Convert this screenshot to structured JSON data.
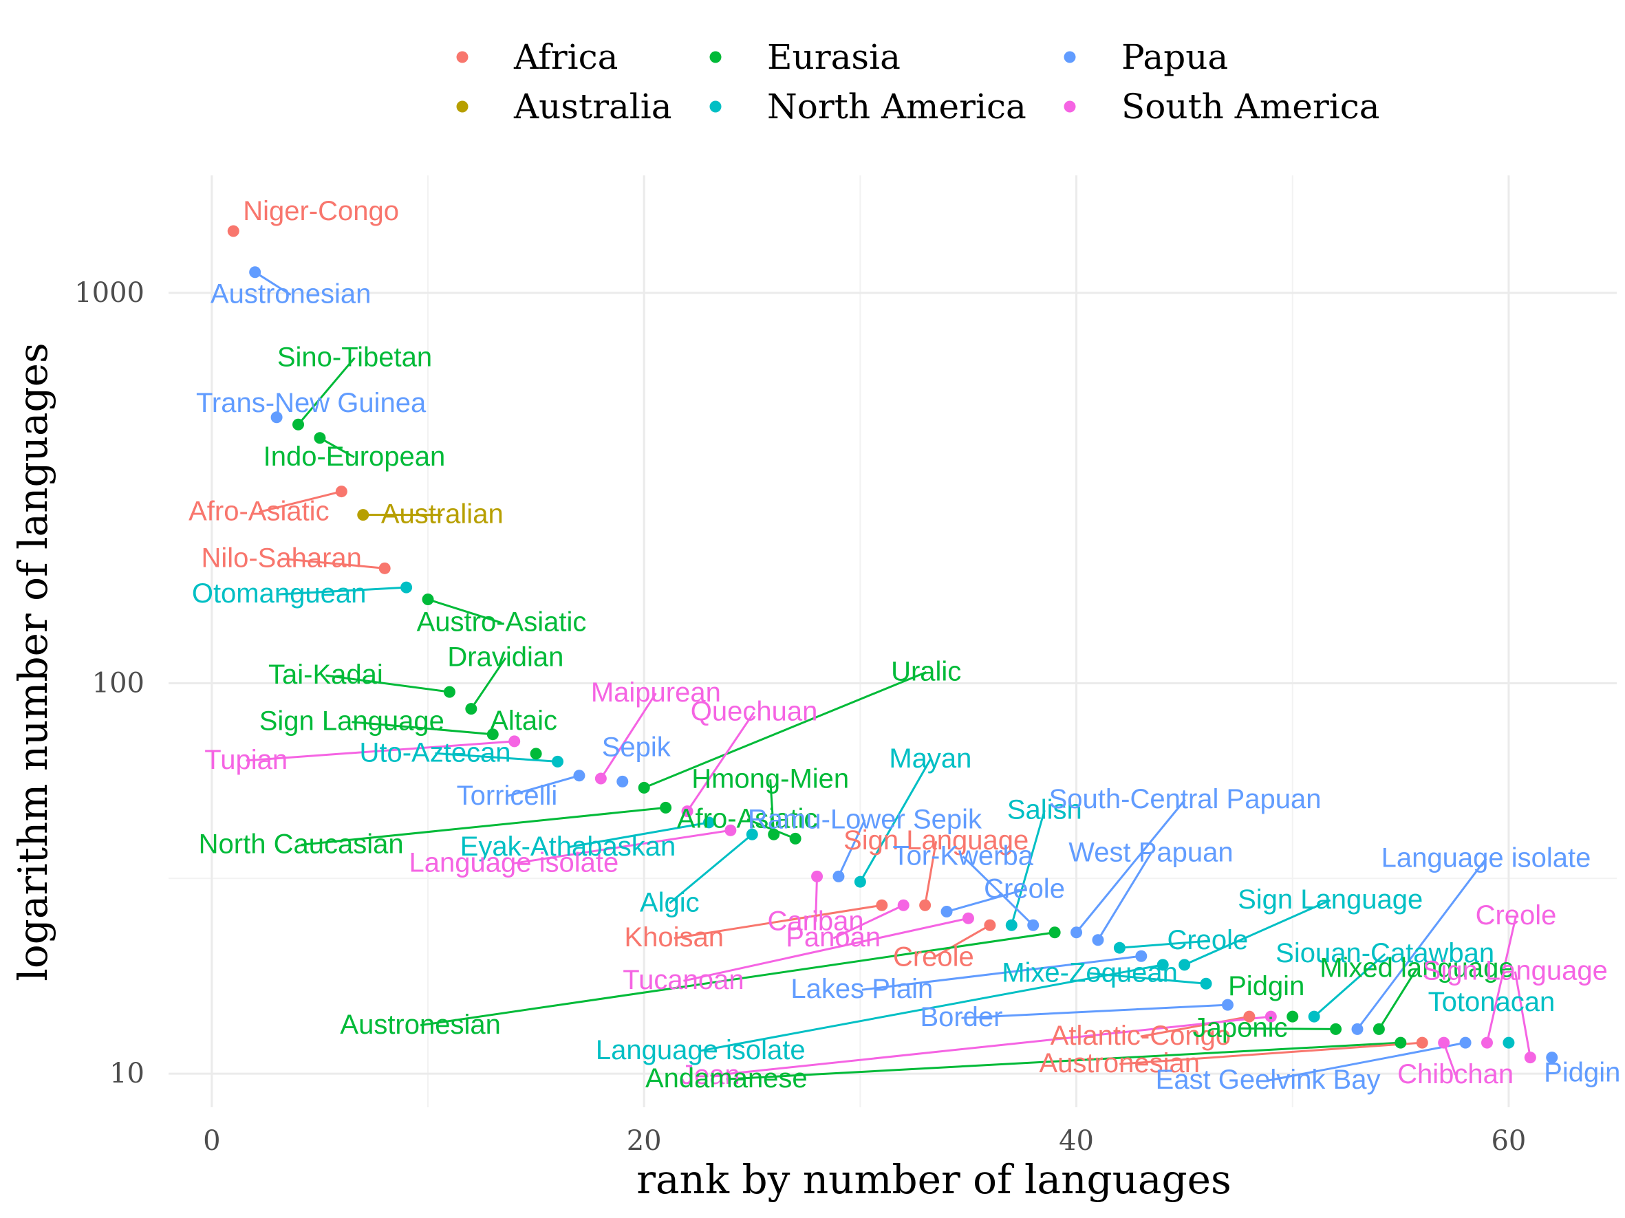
{
  "chart_data": {
    "type": "scatter",
    "title": "",
    "xlabel": "rank by number of languages",
    "ylabel": "logarithm number of languages",
    "x_scale": "linear",
    "y_scale": "log10",
    "xlim": [
      -2,
      65
    ],
    "ylim": [
      8.2,
      2000
    ],
    "x_ticks": [
      0,
      20,
      40,
      60
    ],
    "y_ticks": [
      10,
      100,
      1000
    ],
    "x_tick_labels": [
      "0",
      "20",
      "40",
      "60"
    ],
    "y_tick_labels": [
      "10",
      "100",
      "1000"
    ],
    "grid": true,
    "legend_position": "top",
    "legend": [
      {
        "name": "Africa",
        "color": "#F8766D"
      },
      {
        "name": "Australia",
        "color": "#B79F00"
      },
      {
        "name": "Eurasia",
        "color": "#00BA38"
      },
      {
        "name": "North America",
        "color": "#00BFC4"
      },
      {
        "name": "Papua",
        "color": "#619CFF"
      },
      {
        "name": "South America",
        "color": "#F564E3"
      }
    ],
    "points": [
      {
        "x": 1,
        "y": 1440,
        "region": "Africa",
        "label": "Niger-Congo"
      },
      {
        "x": 2,
        "y": 1130,
        "region": "Papua",
        "label": "Austronesian"
      },
      {
        "x": 3,
        "y": 480,
        "region": "Papua",
        "label": "Trans-New Guinea"
      },
      {
        "x": 4,
        "y": 460,
        "region": "Eurasia",
        "label": "Sino-Tibetan"
      },
      {
        "x": 5,
        "y": 425,
        "region": "Eurasia",
        "label": "Indo-European"
      },
      {
        "x": 6,
        "y": 310,
        "region": "Africa",
        "label": "Afro-Asiatic"
      },
      {
        "x": 7,
        "y": 270,
        "region": "Australia",
        "label": "Australian"
      },
      {
        "x": 8,
        "y": 197,
        "region": "Africa",
        "label": "Nilo-Saharan"
      },
      {
        "x": 9,
        "y": 176,
        "region": "North America",
        "label": "Otomanguean"
      },
      {
        "x": 10,
        "y": 164,
        "region": "Eurasia",
        "label": "Austro-Asiatic"
      },
      {
        "x": 11,
        "y": 95,
        "region": "Eurasia",
        "label": "Tai-Kadai"
      },
      {
        "x": 12,
        "y": 86,
        "region": "Eurasia",
        "label": "Dravidian"
      },
      {
        "x": 13,
        "y": 74,
        "region": "Eurasia",
        "label": "Sign Language"
      },
      {
        "x": 14,
        "y": 71,
        "region": "South America",
        "label": "Tupian"
      },
      {
        "x": 15,
        "y": 66,
        "region": "Eurasia",
        "label": "Altaic"
      },
      {
        "x": 16,
        "y": 63,
        "region": "North America",
        "label": "Uto-Aztecan"
      },
      {
        "x": 17,
        "y": 58,
        "region": "Papua",
        "label": "Torricelli"
      },
      {
        "x": 18,
        "y": 57,
        "region": "South America",
        "label": "Maipurean"
      },
      {
        "x": 19,
        "y": 56,
        "region": "Papua",
        "label": "Sepik"
      },
      {
        "x": 20,
        "y": 54,
        "region": "Eurasia",
        "label": "Uralic"
      },
      {
        "x": 21,
        "y": 48,
        "region": "Eurasia",
        "label": "North Caucasian"
      },
      {
        "x": 22,
        "y": 47,
        "region": "South America",
        "label": "Quechuan"
      },
      {
        "x": 23,
        "y": 44,
        "region": "North America",
        "label": "Eyak-Athabaskan"
      },
      {
        "x": 24,
        "y": 42,
        "region": "South America",
        "label": "Language isolate"
      },
      {
        "x": 25,
        "y": 41,
        "region": "North America",
        "label": "Algic"
      },
      {
        "x": 26,
        "y": 41,
        "region": "Eurasia",
        "label": "Hmong-Mien"
      },
      {
        "x": 27,
        "y": 40,
        "region": "Eurasia",
        "label": "Afro-Asiatic"
      },
      {
        "x": 28,
        "y": 32,
        "region": "South America",
        "label": "Cariban"
      },
      {
        "x": 29,
        "y": 32,
        "region": "Papua",
        "label": "Ramu-Lower Sepik"
      },
      {
        "x": 30,
        "y": 31,
        "region": "North America",
        "label": "Mayan"
      },
      {
        "x": 31,
        "y": 27,
        "region": "Africa",
        "label": "Khoisan"
      },
      {
        "x": 32,
        "y": 27,
        "region": "South America",
        "label": "Panoan"
      },
      {
        "x": 33,
        "y": 27,
        "region": "Africa",
        "label": "Sign Language"
      },
      {
        "x": 34,
        "y": 26,
        "region": "Papua",
        "label": "Creole"
      },
      {
        "x": 35,
        "y": 25,
        "region": "South America",
        "label": "Tucanoan"
      },
      {
        "x": 36,
        "y": 24,
        "region": "Africa",
        "label": "Creole"
      },
      {
        "x": 37,
        "y": 24,
        "region": "North America",
        "label": "Salish"
      },
      {
        "x": 38,
        "y": 24,
        "region": "Papua",
        "label": "Tor-Kwerba"
      },
      {
        "x": 39,
        "y": 23,
        "region": "Eurasia",
        "label": "Austronesian"
      },
      {
        "x": 40,
        "y": 23,
        "region": "Papua",
        "label": "South-Central Papuan"
      },
      {
        "x": 41,
        "y": 22,
        "region": "Papua",
        "label": "West Papuan"
      },
      {
        "x": 42,
        "y": 21,
        "region": "North America",
        "label": "Creole"
      },
      {
        "x": 43,
        "y": 20,
        "region": "Papua",
        "label": "Lakes Plain"
      },
      {
        "x": 44,
        "y": 19,
        "region": "North America",
        "label": "Language isolate"
      },
      {
        "x": 45,
        "y": 19,
        "region": "North America",
        "label": "Sign Language"
      },
      {
        "x": 46,
        "y": 17,
        "region": "North America",
        "label": "Mixe-Zoquean"
      },
      {
        "x": 47,
        "y": 15,
        "region": "Papua",
        "label": "Border"
      },
      {
        "x": 48,
        "y": 14,
        "region": "Africa",
        "label": "Atlantic-Congo"
      },
      {
        "x": 49,
        "y": 14,
        "region": "South America",
        "label": "Jean"
      },
      {
        "x": 50,
        "y": 14,
        "region": "Eurasia",
        "label": "Pidgin"
      },
      {
        "x": 51,
        "y": 14,
        "region": "North America",
        "label": "Siouan-Catawban"
      },
      {
        "x": 52,
        "y": 13,
        "region": "Eurasia",
        "label": "Japonic"
      },
      {
        "x": 53,
        "y": 13,
        "region": "Papua",
        "label": "Language isolate"
      },
      {
        "x": 54,
        "y": 13,
        "region": "Eurasia",
        "label": "Mixed language"
      },
      {
        "x": 55,
        "y": 12,
        "region": "Eurasia",
        "label": "Andamanese"
      },
      {
        "x": 56,
        "y": 12,
        "region": "Africa",
        "label": "Austronesian"
      },
      {
        "x": 57,
        "y": 12,
        "region": "South America",
        "label": "Chibchan"
      },
      {
        "x": 58,
        "y": 12,
        "region": "Papua",
        "label": "East Geelvink Bay"
      },
      {
        "x": 59,
        "y": 12,
        "region": "South America",
        "label": "Creole"
      },
      {
        "x": 60,
        "y": 12,
        "region": "North America",
        "label": "Totonacan"
      },
      {
        "x": 61,
        "y": 11,
        "region": "South America",
        "label": "Sign Language"
      },
      {
        "x": 62,
        "y": 11,
        "region": "Papua",
        "label": "Pidgin"
      }
    ]
  }
}
